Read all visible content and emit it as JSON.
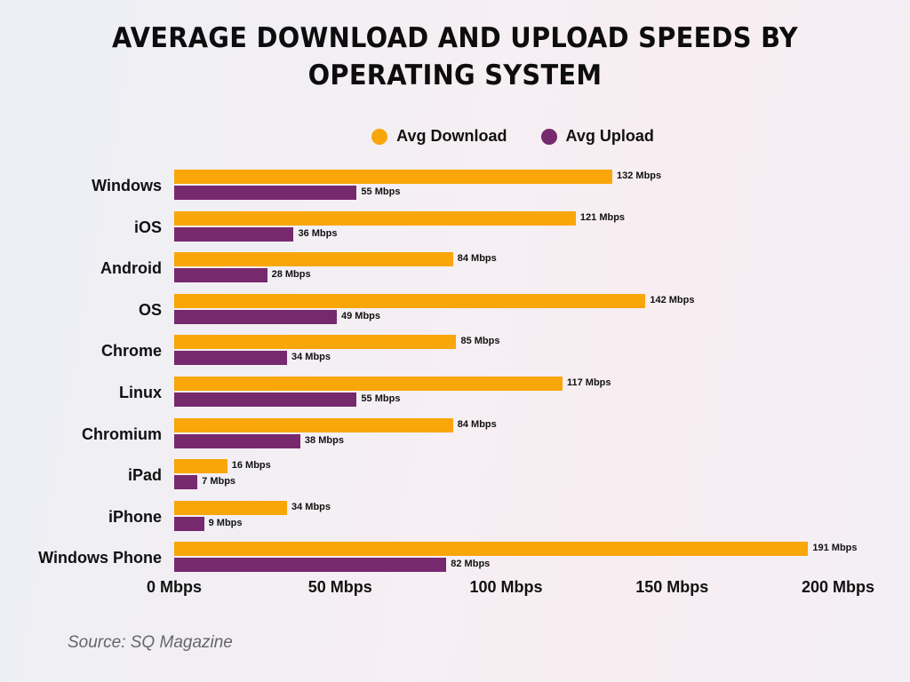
{
  "title_line1": "AVERAGE DOWNLOAD AND UPLOAD SPEEDS BY",
  "title_line2": "OPERATING SYSTEM",
  "legend": [
    {
      "label": "Avg Download",
      "color": "#f9a60a"
    },
    {
      "label": "Avg Upload",
      "color": "#77296e"
    }
  ],
  "source": "Source: SQ Magazine",
  "ticks": [
    "0 Mbps",
    "50 Mbps",
    "100 Mbps",
    "150 Mbps",
    "200 Mbps"
  ],
  "chart_data": {
    "type": "bar",
    "orientation": "horizontal",
    "title": "AVERAGE DOWNLOAD AND UPLOAD SPEEDS BY OPERATING SYSTEM",
    "categories": [
      "Windows",
      "iOS",
      "Android",
      "OS",
      "Chrome",
      "Linux",
      "Chromium",
      "iPad",
      "iPhone",
      "Windows Phone"
    ],
    "series": [
      {
        "name": "Avg Download",
        "color": "#f9a60a",
        "values": [
          132,
          121,
          84,
          142,
          85,
          117,
          84,
          16,
          34,
          191
        ]
      },
      {
        "name": "Avg Upload",
        "color": "#77296e",
        "values": [
          55,
          36,
          28,
          49,
          34,
          55,
          38,
          7,
          9,
          82
        ]
      }
    ],
    "value_labels": {
      "download": [
        "132 Mbps",
        "121 Mbps",
        "84 Mbps",
        "142 Mbps",
        "85 Mbps",
        "117 Mbps",
        "84 Mbps",
        "16 Mbps",
        "34 Mbps",
        "191 Mbps"
      ],
      "upload": [
        "55 Mbps",
        "36 Mbps",
        "28 Mbps",
        "49 Mbps",
        "34 Mbps",
        "55 Mbps",
        "38 Mbps",
        "7 Mbps",
        "9 Mbps",
        "82 Mbps"
      ]
    },
    "xlabel": "",
    "ylabel": "",
    "xlim": [
      0,
      200
    ],
    "x_ticks": [
      0,
      50,
      100,
      150,
      200
    ],
    "x_tick_labels": [
      "0 Mbps",
      "50 Mbps",
      "100 Mbps",
      "150 Mbps",
      "200 Mbps"
    ],
    "unit": "Mbps",
    "grid": false,
    "legend_position": "top"
  }
}
